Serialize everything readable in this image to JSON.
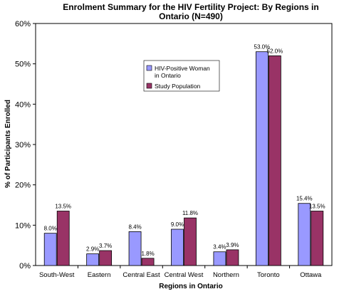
{
  "chart_data": {
    "type": "bar",
    "title_lines": [
      "Enrolment Summary for the HIV Fertility Project: By Regions in",
      "Ontario (N=490)"
    ],
    "xlabel": "Regions in Ontario",
    "ylabel": "% of Participants Enrolled",
    "ylim": [
      0,
      60
    ],
    "ytick_step": 10,
    "yticks": [
      "0%",
      "10%",
      "20%",
      "30%",
      "40%",
      "50%",
      "60%"
    ],
    "grid": false,
    "legend_position": "upper-center",
    "categories": [
      "South-West",
      "Eastern",
      "Central East",
      "Central West",
      "Northern",
      "Toronto",
      "Ottawa"
    ],
    "series": [
      {
        "name_lines": [
          "HIV-Positive Woman",
          "in Ontario"
        ],
        "color": "#9999ff",
        "values": [
          8.0,
          2.9,
          8.4,
          9.0,
          3.4,
          53.0,
          15.4
        ],
        "labels": [
          "8.0%",
          "2.9%",
          "8.4%",
          "9.0%",
          "3.4%",
          "53.0%",
          "15.4%"
        ]
      },
      {
        "name_lines": [
          "Study Population"
        ],
        "color": "#993366",
        "values": [
          13.5,
          3.7,
          1.8,
          11.8,
          3.9,
          52.0,
          13.5
        ],
        "labels": [
          "13.5%",
          "3.7%",
          "1.8%",
          "11.8%",
          "3.9%",
          "52.0%",
          "13.5%"
        ]
      }
    ]
  }
}
